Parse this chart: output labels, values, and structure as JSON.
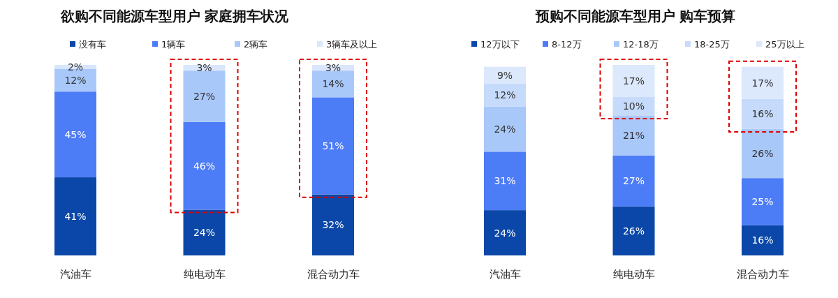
{
  "chart_data": [
    {
      "type": "bar",
      "title": "欲购不同能源车型用户  家庭拥车状况",
      "stacked": true,
      "legend": "top",
      "categories": [
        "汽油车",
        "纯电动车",
        "混合动力车"
      ],
      "series": [
        {
          "name": "没有车",
          "color": "#0a47a8",
          "values": [
            41,
            24,
            32
          ],
          "value_labels": [
            "41%",
            "24%",
            "32%"
          ]
        },
        {
          "name": "1辆车",
          "color": "#4d7cf7",
          "values": [
            45,
            46,
            51
          ],
          "value_labels": [
            "45%",
            "46%",
            "51%"
          ]
        },
        {
          "name": "2辆车",
          "color": "#a9c8fa",
          "values": [
            12,
            27,
            14
          ],
          "value_labels": [
            "12%",
            "27%",
            "14%"
          ]
        },
        {
          "name": "3辆车及以上",
          "color": "#d9e6fb",
          "values": [
            2,
            3,
            3
          ],
          "value_labels": [
            "2%",
            "3%",
            "3%"
          ]
        }
      ]
    },
    {
      "type": "bar",
      "title": "预购不同能源车型用户  购车预算",
      "stacked": true,
      "legend": "top",
      "categories": [
        "汽油车",
        "纯电动车",
        "混合动力车"
      ],
      "series": [
        {
          "name": "12万以下",
          "color": "#0a47a8",
          "values": [
            24,
            26,
            16
          ],
          "value_labels": [
            "24%",
            "26%",
            "16%"
          ]
        },
        {
          "name": "8-12万",
          "color": "#4d7cf7",
          "values": [
            31,
            27,
            25
          ],
          "value_labels": [
            "31%",
            "27%",
            "25%"
          ]
        },
        {
          "name": "12-18万",
          "color": "#a9c8fa",
          "values": [
            24,
            21,
            26
          ],
          "value_labels": [
            "24%",
            "21%",
            "26%"
          ]
        },
        {
          "name": "18-25万",
          "color": "#c6dbfb",
          "values": [
            12,
            10,
            16
          ],
          "value_labels": [
            "12%",
            "10%",
            "16%"
          ]
        },
        {
          "name": "25万以上",
          "color": "#dce8fc",
          "values": [
            9,
            17,
            17
          ],
          "value_labels": [
            "9%",
            "17%",
            "17%"
          ]
        }
      ]
    }
  ]
}
